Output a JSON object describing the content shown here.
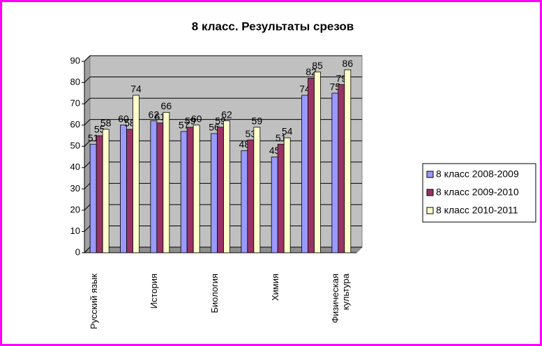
{
  "chart_data": {
    "type": "bar",
    "title": "8 класс. Результаты срезов",
    "categories": [
      "Русский язык",
      null,
      "История",
      null,
      "Биология",
      null,
      "Химия",
      null,
      "Физическая культура"
    ],
    "series": [
      {
        "name": "8 класс 2008-2009",
        "color": "#9999ff",
        "values": [
          51,
          60,
          62,
          57,
          56,
          48,
          45,
          74,
          75
        ]
      },
      {
        "name": "8 класс 2009-2010",
        "color": "#993366",
        "values": [
          55,
          58,
          61,
          59,
          59,
          53,
          51,
          82,
          79
        ]
      },
      {
        "name": "8 класс 2010-2011",
        "color": "#ffffcc",
        "values": [
          58,
          74,
          66,
          60,
          62,
          59,
          54,
          85,
          86
        ]
      }
    ],
    "ylim": [
      0,
      90
    ],
    "yticks": [
      0,
      10,
      20,
      30,
      40,
      50,
      60,
      70,
      80,
      90
    ],
    "grid": true,
    "legend": "right"
  }
}
